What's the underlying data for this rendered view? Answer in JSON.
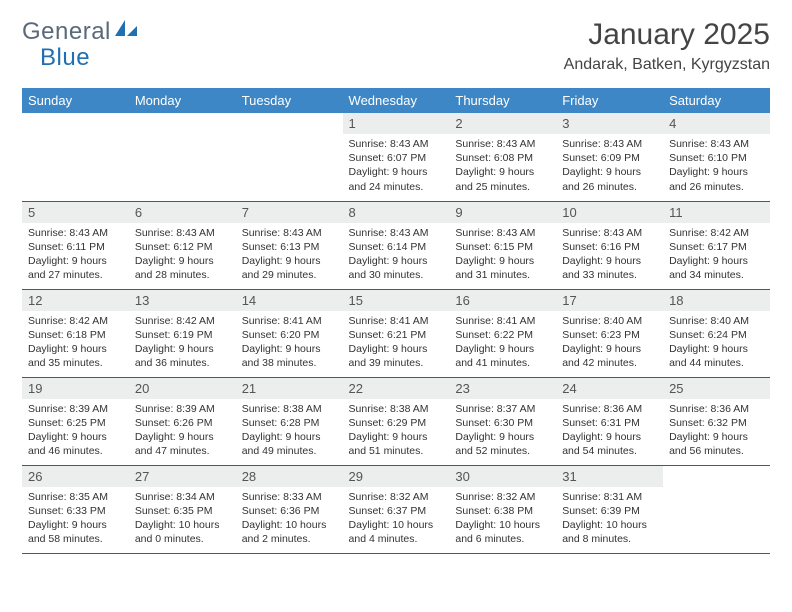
{
  "brand": {
    "name1": "General",
    "name2": "Blue"
  },
  "title": "January 2025",
  "location": "Andarak, Batken, Kyrgyzstan",
  "colors": {
    "header_bg": "#3d87c7",
    "header_text": "#ffffff",
    "row_border": "#2a5f94",
    "daynum_bg": "#eceded",
    "brand_gray": "#5a6a7a",
    "brand_blue": "#1f6fb2"
  },
  "weekdays": [
    "Sunday",
    "Monday",
    "Tuesday",
    "Wednesday",
    "Thursday",
    "Friday",
    "Saturday"
  ],
  "weeks": [
    [
      {
        "empty": true
      },
      {
        "empty": true
      },
      {
        "empty": true
      },
      {
        "num": "1",
        "sunrise": "8:43 AM",
        "sunset": "6:07 PM",
        "daylight": "9 hours and 24 minutes."
      },
      {
        "num": "2",
        "sunrise": "8:43 AM",
        "sunset": "6:08 PM",
        "daylight": "9 hours and 25 minutes."
      },
      {
        "num": "3",
        "sunrise": "8:43 AM",
        "sunset": "6:09 PM",
        "daylight": "9 hours and 26 minutes."
      },
      {
        "num": "4",
        "sunrise": "8:43 AM",
        "sunset": "6:10 PM",
        "daylight": "9 hours and 26 minutes."
      }
    ],
    [
      {
        "num": "5",
        "sunrise": "8:43 AM",
        "sunset": "6:11 PM",
        "daylight": "9 hours and 27 minutes."
      },
      {
        "num": "6",
        "sunrise": "8:43 AM",
        "sunset": "6:12 PM",
        "daylight": "9 hours and 28 minutes."
      },
      {
        "num": "7",
        "sunrise": "8:43 AM",
        "sunset": "6:13 PM",
        "daylight": "9 hours and 29 minutes."
      },
      {
        "num": "8",
        "sunrise": "8:43 AM",
        "sunset": "6:14 PM",
        "daylight": "9 hours and 30 minutes."
      },
      {
        "num": "9",
        "sunrise": "8:43 AM",
        "sunset": "6:15 PM",
        "daylight": "9 hours and 31 minutes."
      },
      {
        "num": "10",
        "sunrise": "8:43 AM",
        "sunset": "6:16 PM",
        "daylight": "9 hours and 33 minutes."
      },
      {
        "num": "11",
        "sunrise": "8:42 AM",
        "sunset": "6:17 PM",
        "daylight": "9 hours and 34 minutes."
      }
    ],
    [
      {
        "num": "12",
        "sunrise": "8:42 AM",
        "sunset": "6:18 PM",
        "daylight": "9 hours and 35 minutes."
      },
      {
        "num": "13",
        "sunrise": "8:42 AM",
        "sunset": "6:19 PM",
        "daylight": "9 hours and 36 minutes."
      },
      {
        "num": "14",
        "sunrise": "8:41 AM",
        "sunset": "6:20 PM",
        "daylight": "9 hours and 38 minutes."
      },
      {
        "num": "15",
        "sunrise": "8:41 AM",
        "sunset": "6:21 PM",
        "daylight": "9 hours and 39 minutes."
      },
      {
        "num": "16",
        "sunrise": "8:41 AM",
        "sunset": "6:22 PM",
        "daylight": "9 hours and 41 minutes."
      },
      {
        "num": "17",
        "sunrise": "8:40 AM",
        "sunset": "6:23 PM",
        "daylight": "9 hours and 42 minutes."
      },
      {
        "num": "18",
        "sunrise": "8:40 AM",
        "sunset": "6:24 PM",
        "daylight": "9 hours and 44 minutes."
      }
    ],
    [
      {
        "num": "19",
        "sunrise": "8:39 AM",
        "sunset": "6:25 PM",
        "daylight": "9 hours and 46 minutes."
      },
      {
        "num": "20",
        "sunrise": "8:39 AM",
        "sunset": "6:26 PM",
        "daylight": "9 hours and 47 minutes."
      },
      {
        "num": "21",
        "sunrise": "8:38 AM",
        "sunset": "6:28 PM",
        "daylight": "9 hours and 49 minutes."
      },
      {
        "num": "22",
        "sunrise": "8:38 AM",
        "sunset": "6:29 PM",
        "daylight": "9 hours and 51 minutes."
      },
      {
        "num": "23",
        "sunrise": "8:37 AM",
        "sunset": "6:30 PM",
        "daylight": "9 hours and 52 minutes."
      },
      {
        "num": "24",
        "sunrise": "8:36 AM",
        "sunset": "6:31 PM",
        "daylight": "9 hours and 54 minutes."
      },
      {
        "num": "25",
        "sunrise": "8:36 AM",
        "sunset": "6:32 PM",
        "daylight": "9 hours and 56 minutes."
      }
    ],
    [
      {
        "num": "26",
        "sunrise": "8:35 AM",
        "sunset": "6:33 PM",
        "daylight": "9 hours and 58 minutes."
      },
      {
        "num": "27",
        "sunrise": "8:34 AM",
        "sunset": "6:35 PM",
        "daylight": "10 hours and 0 minutes."
      },
      {
        "num": "28",
        "sunrise": "8:33 AM",
        "sunset": "6:36 PM",
        "daylight": "10 hours and 2 minutes."
      },
      {
        "num": "29",
        "sunrise": "8:32 AM",
        "sunset": "6:37 PM",
        "daylight": "10 hours and 4 minutes."
      },
      {
        "num": "30",
        "sunrise": "8:32 AM",
        "sunset": "6:38 PM",
        "daylight": "10 hours and 6 minutes."
      },
      {
        "num": "31",
        "sunrise": "8:31 AM",
        "sunset": "6:39 PM",
        "daylight": "10 hours and 8 minutes."
      },
      {
        "empty": true
      }
    ]
  ],
  "labels": {
    "sunrise": "Sunrise:",
    "sunset": "Sunset:",
    "daylight": "Daylight:"
  }
}
